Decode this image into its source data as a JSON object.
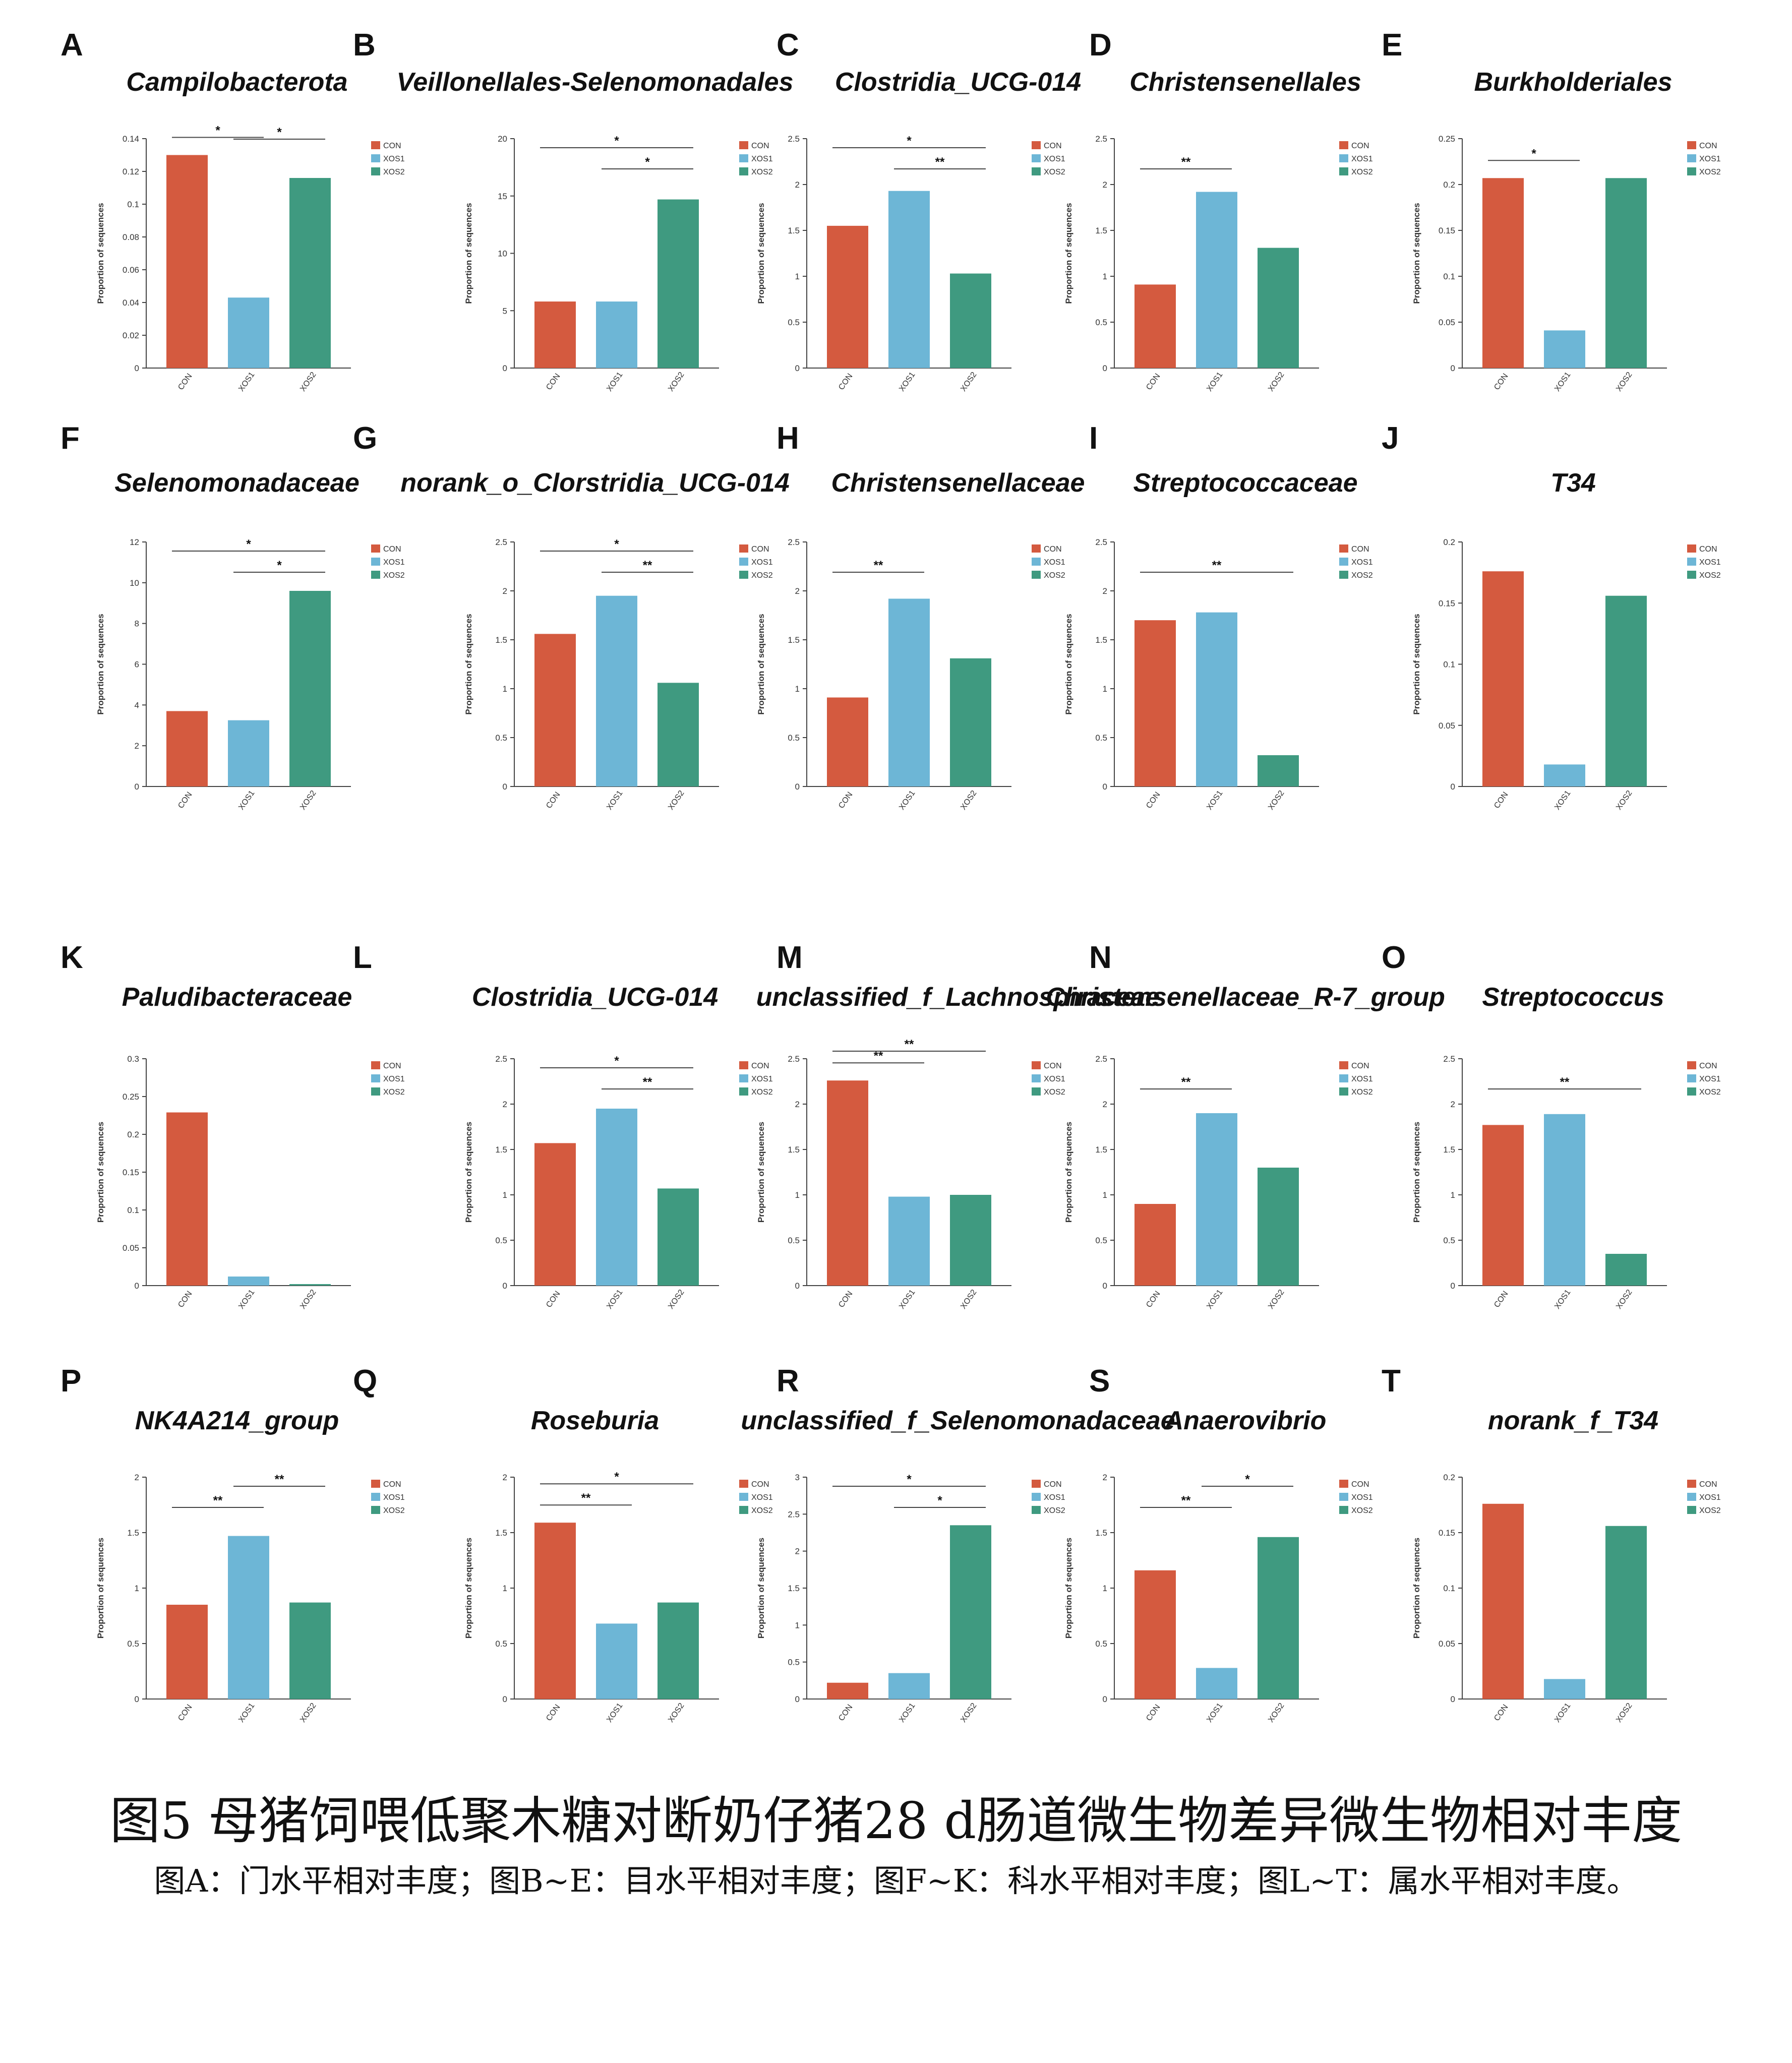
{
  "figure": {
    "title": "图5 母猪饲喂低聚木糖对断奶仔猪28 d肠道微生物差异微生物相对丰度",
    "note": "图A：门水平相对丰度；图B~E：目水平相对丰度；图F~K：科水平相对丰度；图L~T：属水平相对丰度。"
  },
  "colors": {
    "CON": "#d45a3f",
    "XOS1": "#6db6d6",
    "XOS2": "#3f9a80"
  },
  "chart_data": [
    {
      "letter": "A",
      "type": "bar",
      "title": "Campilobacterota",
      "ylabel": "Proportion of sequences",
      "categories": [
        "CON",
        "XOS1",
        "XOS2"
      ],
      "values": [
        0.13,
        0.043,
        0.116
      ],
      "ylim": [
        0,
        0.14
      ],
      "yticks": [
        "0",
        "0.02",
        "0.04",
        "0.06",
        "0.08",
        "0.1",
        "0.12",
        "0.14"
      ],
      "legend": [
        "CON",
        "XOS1",
        "XOS2"
      ],
      "sig": [
        {
          "from": 0,
          "to": 1,
          "label": "*"
        },
        {
          "from": 1,
          "to": 2,
          "label": "*"
        }
      ]
    },
    {
      "letter": "B",
      "type": "bar",
      "title": "Veillonellales-Selenomonadales",
      "ylabel": "Proportion of sequences",
      "categories": [
        "CON",
        "XOS1",
        "XOS2"
      ],
      "values": [
        5.8,
        5.8,
        14.7
      ],
      "ylim": [
        0,
        20
      ],
      "yticks": [
        "0",
        "5",
        "10",
        "15",
        "20"
      ],
      "legend": [
        "CON",
        "XOS1",
        "XOS2"
      ],
      "sig": [
        {
          "from": 1,
          "to": 2,
          "label": "*"
        },
        {
          "from": 0,
          "to": 2,
          "label": "*"
        }
      ]
    },
    {
      "letter": "C",
      "type": "bar",
      "title": "Clostridia_UCG-014",
      "ylabel": "Proportion of sequences",
      "categories": [
        "CON",
        "XOS1",
        "XOS2"
      ],
      "values": [
        1.55,
        1.93,
        1.03
      ],
      "ylim": [
        0,
        2.5
      ],
      "yticks": [
        "0",
        "0.5",
        "1",
        "1.5",
        "2",
        "2.5"
      ],
      "legend": [
        "CON",
        "XOS1",
        "XOS2"
      ],
      "sig": [
        {
          "from": 1,
          "to": 2,
          "label": "**"
        },
        {
          "from": 0,
          "to": 2,
          "label": "*"
        }
      ]
    },
    {
      "letter": "D",
      "type": "bar",
      "title": "Christensenellales",
      "ylabel": "Proportion of sequences",
      "categories": [
        "CON",
        "XOS1",
        "XOS2"
      ],
      "values": [
        0.91,
        1.92,
        1.31
      ],
      "ylim": [
        0,
        2.5
      ],
      "yticks": [
        "0",
        "0.5",
        "1",
        "1.5",
        "2",
        "2.5"
      ],
      "legend": [
        "CON",
        "XOS1",
        "XOS2"
      ],
      "sig": [
        {
          "from": 0,
          "to": 1,
          "label": "**"
        }
      ]
    },
    {
      "letter": "E",
      "type": "bar",
      "title": "Burkholderiales",
      "ylabel": "Proportion of sequences",
      "categories": [
        "CON",
        "XOS1",
        "XOS2"
      ],
      "values": [
        0.207,
        0.041,
        0.207
      ],
      "ylim": [
        0,
        0.25
      ],
      "yticks": [
        "0",
        "0.05",
        "0.1",
        "0.15",
        "0.2",
        "0.25"
      ],
      "legend": [
        "CON",
        "XOS1",
        "XOS2"
      ],
      "sig": [
        {
          "from": 0,
          "to": 1,
          "label": "*"
        }
      ]
    },
    {
      "letter": "F",
      "type": "bar",
      "title": "Selenomonadaceae",
      "ylabel": "Proportion of sequences",
      "categories": [
        "CON",
        "XOS1",
        "XOS2"
      ],
      "values": [
        3.7,
        3.25,
        9.6
      ],
      "ylim": [
        0,
        12
      ],
      "yticks": [
        "0",
        "2",
        "4",
        "6",
        "8",
        "10",
        "12"
      ],
      "legend": [
        "CON",
        "XOS1",
        "XOS2"
      ],
      "sig": [
        {
          "from": 1,
          "to": 2,
          "label": "*"
        },
        {
          "from": 0,
          "to": 2,
          "label": "*"
        }
      ]
    },
    {
      "letter": "G",
      "type": "bar",
      "title": "norank_o_Clorstridia_UCG-014",
      "ylabel": "Proportion of sequences",
      "categories": [
        "CON",
        "XOS1",
        "XOS2"
      ],
      "values": [
        1.56,
        1.95,
        1.06
      ],
      "ylim": [
        0,
        2.5
      ],
      "yticks": [
        "0",
        "0.5",
        "1",
        "1.5",
        "2",
        "2.5"
      ],
      "legend": [
        "CON",
        "XOS1",
        "XOS2"
      ],
      "sig": [
        {
          "from": 1,
          "to": 2,
          "label": "**"
        },
        {
          "from": 0,
          "to": 2,
          "label": "*"
        }
      ]
    },
    {
      "letter": "H",
      "type": "bar",
      "title": "Christensenellaceae",
      "ylabel": "Proportion of sequences",
      "categories": [
        "CON",
        "XOS1",
        "XOS2"
      ],
      "values": [
        0.91,
        1.92,
        1.31
      ],
      "ylim": [
        0,
        2.5
      ],
      "yticks": [
        "0",
        "0.5",
        "1",
        "1.5",
        "2",
        "2.5"
      ],
      "legend": [
        "CON",
        "XOS1",
        "XOS2"
      ],
      "sig": [
        {
          "from": 0,
          "to": 1,
          "label": "**"
        }
      ]
    },
    {
      "letter": "I",
      "type": "bar",
      "title": "Streptococcaceae",
      "ylabel": "Proportion of sequences",
      "categories": [
        "CON",
        "XOS1",
        "XOS2"
      ],
      "values": [
        1.7,
        1.78,
        0.32
      ],
      "ylim": [
        0,
        2.5
      ],
      "yticks": [
        "0",
        "0.5",
        "1",
        "1.5",
        "2",
        "2.5"
      ],
      "legend": [
        "CON",
        "XOS1",
        "XOS2"
      ],
      "sig": [
        {
          "from": 0,
          "to": 2,
          "label": "**"
        }
      ]
    },
    {
      "letter": "J",
      "type": "bar",
      "title": "T34",
      "ylabel": "Proportion of sequences",
      "categories": [
        "CON",
        "XOS1",
        "XOS2"
      ],
      "values": [
        0.176,
        0.018,
        0.156
      ],
      "ylim": [
        0,
        0.2
      ],
      "yticks": [
        "0",
        "0.05",
        "0.1",
        "0.15",
        "0.2"
      ],
      "legend": [
        "CON",
        "XOS1",
        "XOS2"
      ],
      "sig": []
    },
    {
      "letter": "K",
      "type": "bar",
      "title": "Paludibacteraceae",
      "ylabel": "Proportion of sequences",
      "categories": [
        "CON",
        "XOS1",
        "XOS2"
      ],
      "values": [
        0.229,
        0.012,
        0.002
      ],
      "ylim": [
        0,
        0.3
      ],
      "yticks": [
        "0",
        "0.05",
        "0.1",
        "0.15",
        "0.2",
        "0.25",
        "0.3"
      ],
      "legend": [
        "CON",
        "XOS1",
        "XOS2"
      ],
      "sig": []
    },
    {
      "letter": "L",
      "type": "bar",
      "title": "Clostridia_UCG-014",
      "ylabel": "Proportion of sequences",
      "categories": [
        "CON",
        "XOS1",
        "XOS2"
      ],
      "values": [
        1.57,
        1.95,
        1.07
      ],
      "ylim": [
        0,
        2.5
      ],
      "yticks": [
        "0",
        "0.5",
        "1",
        "1.5",
        "2",
        "2.5"
      ],
      "legend": [
        "CON",
        "XOS1",
        "XOS2"
      ],
      "sig": [
        {
          "from": 1,
          "to": 2,
          "label": "**"
        },
        {
          "from": 0,
          "to": 2,
          "label": "*"
        }
      ]
    },
    {
      "letter": "M",
      "type": "bar",
      "title": "unclassified_f_Lachnospiraceae",
      "ylabel": "Proportion of sequences",
      "categories": [
        "CON",
        "XOS1",
        "XOS2"
      ],
      "values": [
        2.26,
        0.98,
        1.0
      ],
      "ylim": [
        0,
        2.5
      ],
      "yticks": [
        "0",
        "0.5",
        "1",
        "1.5",
        "2",
        "2.5"
      ],
      "legend": [
        "CON",
        "XOS1",
        "XOS2"
      ],
      "sig": [
        {
          "from": 0,
          "to": 1,
          "label": "**"
        },
        {
          "from": 0,
          "to": 2,
          "label": "**"
        }
      ]
    },
    {
      "letter": "N",
      "type": "bar",
      "title": "Christensenellaceae_R-7_group",
      "ylabel": "Proportion of sequences",
      "categories": [
        "CON",
        "XOS1",
        "XOS2"
      ],
      "values": [
        0.9,
        1.9,
        1.3
      ],
      "ylim": [
        0,
        2.5
      ],
      "yticks": [
        "0",
        "0.5",
        "1",
        "1.5",
        "2",
        "2.5"
      ],
      "legend": [
        "CON",
        "XOS1",
        "XOS2"
      ],
      "sig": [
        {
          "from": 0,
          "to": 1,
          "label": "**"
        }
      ]
    },
    {
      "letter": "O",
      "type": "bar",
      "title": "Streptococcus",
      "ylabel": "Proportion of sequences",
      "categories": [
        "CON",
        "XOS1",
        "XOS2"
      ],
      "values": [
        1.77,
        1.89,
        0.35
      ],
      "ylim": [
        0,
        2.5
      ],
      "yticks": [
        "0",
        "0.5",
        "1",
        "1.5",
        "2",
        "2.5"
      ],
      "legend": [
        "CON",
        "XOS1",
        "XOS2"
      ],
      "sig": [
        {
          "from": 0,
          "to": 2,
          "label": "**"
        }
      ]
    },
    {
      "letter": "P",
      "type": "bar",
      "title": "NK4A214_group",
      "ylabel": "Proportion of sequences",
      "categories": [
        "CON",
        "XOS1",
        "XOS2"
      ],
      "values": [
        0.85,
        1.47,
        0.87
      ],
      "ylim": [
        0,
        2
      ],
      "yticks": [
        "0",
        "0.5",
        "1",
        "1.5",
        "2"
      ],
      "legend": [
        "CON",
        "XOS1",
        "XOS2"
      ],
      "sig": [
        {
          "from": 0,
          "to": 1,
          "label": "**"
        },
        {
          "from": 1,
          "to": 2,
          "label": "**"
        }
      ]
    },
    {
      "letter": "Q",
      "type": "bar",
      "title": "Roseburia",
      "ylabel": "Proportion of sequences",
      "categories": [
        "CON",
        "XOS1",
        "XOS2"
      ],
      "values": [
        1.59,
        0.68,
        0.87
      ],
      "ylim": [
        0,
        2
      ],
      "yticks": [
        "0",
        "0.5",
        "1",
        "1.5",
        "2"
      ],
      "legend": [
        "CON",
        "XOS1",
        "XOS2"
      ],
      "sig": [
        {
          "from": 0,
          "to": 1,
          "label": "**"
        },
        {
          "from": 0,
          "to": 2,
          "label": "*"
        }
      ]
    },
    {
      "letter": "R",
      "type": "bar",
      "title": "unclassified_f_Selenomonadaceae",
      "ylabel": "Proportion of sequences",
      "categories": [
        "CON",
        "XOS1",
        "XOS2"
      ],
      "values": [
        0.22,
        0.35,
        2.35
      ],
      "ylim": [
        0,
        3
      ],
      "yticks": [
        "0",
        "0.5",
        "1",
        "1.5",
        "2",
        "2.5",
        "3"
      ],
      "legend": [
        "CON",
        "XOS1",
        "XOS2"
      ],
      "sig": [
        {
          "from": 1,
          "to": 2,
          "label": "*"
        },
        {
          "from": 0,
          "to": 2,
          "label": "*"
        }
      ]
    },
    {
      "letter": "S",
      "type": "bar",
      "title": "Anaerovibrio",
      "ylabel": "Proportion of sequences",
      "categories": [
        "CON",
        "XOS1",
        "XOS2"
      ],
      "values": [
        1.16,
        0.28,
        1.46
      ],
      "ylim": [
        0,
        2
      ],
      "yticks": [
        "0",
        "0.5",
        "1",
        "1.5",
        "2"
      ],
      "legend": [
        "CON",
        "XOS1",
        "XOS2"
      ],
      "sig": [
        {
          "from": 0,
          "to": 1,
          "label": "**"
        },
        {
          "from": 1,
          "to": 2,
          "label": "*"
        }
      ]
    },
    {
      "letter": "T",
      "type": "bar",
      "title": "norank_f_T34",
      "ylabel": "Proportion of sequences",
      "categories": [
        "CON",
        "XOS1",
        "XOS2"
      ],
      "values": [
        0.176,
        0.018,
        0.156
      ],
      "ylim": [
        0,
        0.2
      ],
      "yticks": [
        "0",
        "0.05",
        "0.1",
        "0.15",
        "0.2"
      ],
      "legend": [
        "CON",
        "XOS1",
        "XOS2"
      ],
      "sig": []
    }
  ]
}
